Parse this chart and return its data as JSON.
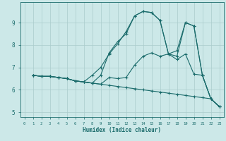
{
  "xlabel": "Humidex (Indice chaleur)",
  "bg_color": "#cce8e8",
  "grid_color": "#aacccc",
  "line_color": "#1a6b6b",
  "xlim": [
    -0.5,
    23.5
  ],
  "ylim": [
    4.8,
    9.9
  ],
  "xticks": [
    0,
    1,
    2,
    3,
    4,
    5,
    6,
    7,
    8,
    9,
    10,
    11,
    12,
    13,
    14,
    15,
    16,
    17,
    18,
    19,
    20,
    21,
    22,
    23
  ],
  "yticks": [
    5,
    6,
    7,
    8,
    9
  ],
  "lines": [
    {
      "x": [
        1,
        2,
        3,
        4,
        5,
        6,
        7,
        8,
        9,
        10,
        11,
        12,
        13,
        14,
        15,
        16,
        17,
        18,
        19,
        20,
        21,
        22,
        23
      ],
      "y": [
        6.65,
        6.6,
        6.6,
        6.55,
        6.5,
        6.4,
        6.35,
        6.65,
        7.0,
        7.6,
        8.05,
        8.6,
        9.3,
        9.5,
        9.45,
        9.1,
        7.6,
        7.75,
        9.0,
        8.85,
        6.65,
        5.6,
        5.25
      ]
    },
    {
      "x": [
        1,
        2,
        3,
        4,
        5,
        6,
        7,
        8,
        9,
        10,
        11,
        12,
        13,
        14,
        15,
        16,
        17,
        18,
        19,
        20,
        21,
        22,
        23
      ],
      "y": [
        6.65,
        6.6,
        6.6,
        6.55,
        6.5,
        6.4,
        6.35,
        6.3,
        6.65,
        7.65,
        8.15,
        8.5,
        9.3,
        9.5,
        9.45,
        9.1,
        7.6,
        7.5,
        9.0,
        8.85,
        6.65,
        5.6,
        5.25
      ]
    },
    {
      "x": [
        1,
        2,
        3,
        4,
        5,
        6,
        7,
        8,
        9,
        10,
        11,
        12,
        13,
        14,
        15,
        16,
        17,
        18,
        19,
        20,
        21,
        22,
        23
      ],
      "y": [
        6.65,
        6.6,
        6.6,
        6.55,
        6.5,
        6.4,
        6.35,
        6.3,
        6.25,
        6.55,
        6.5,
        6.55,
        7.1,
        7.5,
        7.65,
        7.5,
        7.6,
        7.35,
        7.6,
        6.7,
        6.65,
        5.6,
        5.25
      ]
    },
    {
      "x": [
        1,
        2,
        3,
        4,
        5,
        6,
        7,
        8,
        9,
        10,
        11,
        12,
        13,
        14,
        15,
        16,
        17,
        18,
        19,
        20,
        21,
        22,
        23
      ],
      "y": [
        6.65,
        6.6,
        6.6,
        6.55,
        6.5,
        6.4,
        6.35,
        6.3,
        6.25,
        6.2,
        6.15,
        6.1,
        6.05,
        6.0,
        5.95,
        5.9,
        5.85,
        5.8,
        5.75,
        5.7,
        5.65,
        5.6,
        5.25
      ]
    }
  ]
}
